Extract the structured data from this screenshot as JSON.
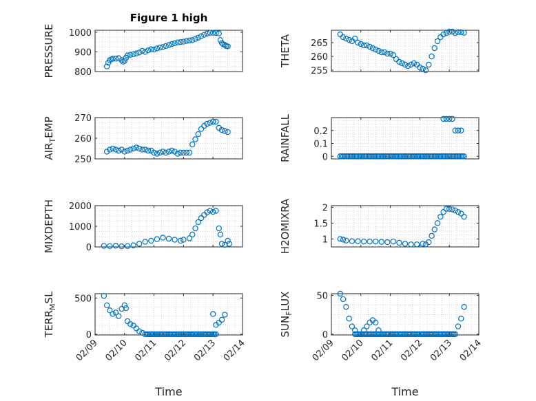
{
  "figure_title": "Figure 1 high",
  "marker_color": "#0072bd",
  "chart_data": [
    {
      "type": "scatter",
      "id": "pressure",
      "title": "Figure 1 high",
      "ylabel": "PRESSURE",
      "ylim": [
        800,
        1010
      ],
      "yticks": [
        800,
        900,
        1000
      ],
      "ytick_labels": [
        "800",
        "900",
        "1000"
      ],
      "xlim": [
        "02/09",
        "02/14"
      ],
      "grid": true,
      "points": [
        [
          "02/09 09:36",
          826
        ],
        [
          "02/09 10:48",
          845
        ],
        [
          "02/09 12:00",
          858
        ],
        [
          "02/09 13:12",
          862
        ],
        [
          "02/09 14:24",
          866
        ],
        [
          "02/09 16:48",
          866
        ],
        [
          "02/09 19:12",
          868
        ],
        [
          "02/09 21:36",
          858
        ],
        [
          "02/09 22:48",
          850
        ],
        [
          "02/10 00:00",
          855
        ],
        [
          "02/10 01:12",
          870
        ],
        [
          "02/10 02:24",
          882
        ],
        [
          "02/10 04:48",
          885
        ],
        [
          "02/10 07:12",
          888
        ],
        [
          "02/10 09:36",
          892
        ],
        [
          "02/10 12:00",
          897
        ],
        [
          "02/10 14:24",
          905
        ],
        [
          "02/10 16:48",
          900
        ],
        [
          "02/10 19:12",
          908
        ],
        [
          "02/10 21:36",
          913
        ],
        [
          "02/11 00:00",
          912
        ],
        [
          "02/11 02:24",
          918
        ],
        [
          "02/11 04:48",
          922
        ],
        [
          "02/11 07:12",
          925
        ],
        [
          "02/11 09:36",
          930
        ],
        [
          "02/11 12:00",
          935
        ],
        [
          "02/11 14:24",
          940
        ],
        [
          "02/11 16:48",
          944
        ],
        [
          "02/11 19:12",
          948
        ],
        [
          "02/11 21:36",
          950
        ],
        [
          "02/12 00:00",
          952
        ],
        [
          "02/12 02:24",
          955
        ],
        [
          "02/12 04:48",
          958
        ],
        [
          "02/12 07:12",
          960
        ],
        [
          "02/12 09:36",
          966
        ],
        [
          "02/12 12:00",
          972
        ],
        [
          "02/12 14:24",
          980
        ],
        [
          "02/12 16:48",
          987
        ],
        [
          "02/12 19:12",
          993
        ],
        [
          "02/12 21:36",
          997
        ],
        [
          "02/13 00:00",
          997
        ],
        [
          "02/13 02:24",
          996
        ],
        [
          "02/13 04:48",
          994
        ],
        [
          "02/13 06:00",
          960
        ],
        [
          "02/13 07:12",
          945
        ],
        [
          "02/13 08:24",
          938
        ],
        [
          "02/13 09:36",
          935
        ],
        [
          "02/13 10:48",
          930
        ],
        [
          "02/13 12:00",
          928
        ]
      ]
    },
    {
      "type": "scatter",
      "id": "theta",
      "ylabel": "THETA",
      "ylim": [
        254.5,
        269.5
      ],
      "yticks": [
        255,
        260,
        265
      ],
      "ytick_labels": [
        "255",
        "260",
        "265"
      ],
      "xlim": [
        "02/09",
        "02/14"
      ],
      "grid": true,
      "points": [
        [
          "02/09 07:12",
          268.0
        ],
        [
          "02/09 09:36",
          267.0
        ],
        [
          "02/09 12:00",
          266.5
        ],
        [
          "02/09 14:24",
          266.0
        ],
        [
          "02/09 16:48",
          265.5
        ],
        [
          "02/09 19:12",
          266.5
        ],
        [
          "02/09 21:36",
          265.0
        ],
        [
          "02/10 00:00",
          264.5
        ],
        [
          "02/10 02:24",
          264.0
        ],
        [
          "02/10 04:48",
          264.0
        ],
        [
          "02/10 07:12",
          263.5
        ],
        [
          "02/10 09:36",
          263.0
        ],
        [
          "02/10 12:00",
          262.5
        ],
        [
          "02/10 14:24",
          262.0
        ],
        [
          "02/10 16:48",
          261.5
        ],
        [
          "02/10 19:12",
          261.5
        ],
        [
          "02/10 21:36",
          261.0
        ],
        [
          "02/11 00:00",
          261.0
        ],
        [
          "02/11 02:24",
          260.5
        ],
        [
          "02/11 04:48",
          259.0
        ],
        [
          "02/11 07:12",
          258.0
        ],
        [
          "02/11 09:36",
          257.5
        ],
        [
          "02/11 12:00",
          257.0
        ],
        [
          "02/11 14:24",
          256.5
        ],
        [
          "02/11 16:48",
          257.0
        ],
        [
          "02/11 19:12",
          257.5
        ],
        [
          "02/11 21:36",
          257.0
        ],
        [
          "02/12 00:00",
          256.0
        ],
        [
          "02/12 02:24",
          255.5
        ],
        [
          "02/12 04:48",
          255.0
        ],
        [
          "02/12 07:12",
          257.0
        ],
        [
          "02/12 09:36",
          260.0
        ],
        [
          "02/12 12:00",
          263.0
        ],
        [
          "02/12 14:24",
          265.5
        ],
        [
          "02/12 16:48",
          267.0
        ],
        [
          "02/12 19:12",
          268.0
        ],
        [
          "02/12 21:36",
          268.5
        ],
        [
          "02/13 00:00",
          269.0
        ],
        [
          "02/13 02:24",
          269.0
        ],
        [
          "02/13 04:48",
          268.5
        ],
        [
          "02/13 07:12",
          268.8
        ],
        [
          "02/13 09:36",
          268.8
        ],
        [
          "02/13 12:00",
          268.6
        ]
      ]
    },
    {
      "type": "scatter",
      "id": "air_temp",
      "ylabel": "AIR_TEMP",
      "ylabel_main": "AIR",
      "ylabel_sub": "T",
      "ylabel_tail": "EMP",
      "ylim": [
        250,
        270
      ],
      "yticks": [
        250,
        260,
        270
      ],
      "ytick_labels": [
        "250",
        "260",
        "270"
      ],
      "xlim": [
        "02/09",
        "02/14"
      ],
      "grid": true,
      "points": [
        [
          "02/09 09:36",
          253.5
        ],
        [
          "02/09 12:00",
          254.5
        ],
        [
          "02/09 14:24",
          255.0
        ],
        [
          "02/09 16:48",
          254.5
        ],
        [
          "02/09 19:12",
          254.0
        ],
        [
          "02/09 21:36",
          254.5
        ],
        [
          "02/10 00:00",
          253.5
        ],
        [
          "02/10 02:24",
          254.0
        ],
        [
          "02/10 04:48",
          254.5
        ],
        [
          "02/10 07:12",
          255.0
        ],
        [
          "02/10 09:36",
          255.5
        ],
        [
          "02/10 12:00",
          255.0
        ],
        [
          "02/10 14:24",
          254.5
        ],
        [
          "02/10 16:48",
          254.5
        ],
        [
          "02/10 19:12",
          254.0
        ],
        [
          "02/10 21:36",
          254.0
        ],
        [
          "02/11 00:00",
          253.0
        ],
        [
          "02/11 02:24",
          252.5
        ],
        [
          "02/11 04:48",
          253.0
        ],
        [
          "02/11 07:12",
          253.5
        ],
        [
          "02/11 09:36",
          253.0
        ],
        [
          "02/11 12:00",
          253.5
        ],
        [
          "02/11 14:24",
          254.0
        ],
        [
          "02/11 16:48",
          253.5
        ],
        [
          "02/11 19:12",
          252.5
        ],
        [
          "02/11 21:36",
          253.0
        ],
        [
          "02/12 00:00",
          253.0
        ],
        [
          "02/12 02:24",
          253.0
        ],
        [
          "02/12 04:48",
          253.0
        ],
        [
          "02/12 07:12",
          257.0
        ],
        [
          "02/12 09:36",
          259.5
        ],
        [
          "02/12 12:00",
          262.0
        ],
        [
          "02/12 14:24",
          264.5
        ],
        [
          "02/12 16:48",
          266.0
        ],
        [
          "02/12 19:12",
          267.0
        ],
        [
          "02/12 21:36",
          267.5
        ],
        [
          "02/13 00:00",
          268.0
        ],
        [
          "02/13 02:24",
          268.0
        ],
        [
          "02/13 04:48",
          265.0
        ],
        [
          "02/13 07:12",
          264.0
        ],
        [
          "02/13 09:36",
          263.5
        ],
        [
          "02/13 12:00",
          263.0
        ]
      ]
    },
    {
      "type": "scatter",
      "id": "rainfall",
      "ylabel": "RAINFALL",
      "ylim": [
        -0.02,
        0.3
      ],
      "yticks": [
        0,
        0.1,
        0.2
      ],
      "ytick_labels": [
        "0",
        "0.1",
        "0.2"
      ],
      "xlim": [
        "02/09",
        "02/14"
      ],
      "grid": true,
      "zero_run": [
        "02/09 07:12",
        "02/13 12:00"
      ],
      "points": [
        [
          "02/12 19:12",
          0.29
        ],
        [
          "02/12 21:36",
          0.29
        ],
        [
          "02/13 00:00",
          0.29
        ],
        [
          "02/13 02:24",
          0.29
        ],
        [
          "02/13 04:48",
          0.2
        ],
        [
          "02/13 07:12",
          0.2
        ],
        [
          "02/13 09:36",
          0.2
        ]
      ]
    },
    {
      "type": "scatter",
      "id": "mixdepth",
      "ylabel": "MIXDEPTH",
      "ylim": [
        0,
        2000
      ],
      "yticks": [
        0,
        1000,
        2000
      ],
      "ytick_labels": [
        "0",
        "1000",
        "2000"
      ],
      "xlim": [
        "02/09",
        "02/14"
      ],
      "grid": true,
      "points": [
        [
          "02/09 07:12",
          50
        ],
        [
          "02/09 12:00",
          40
        ],
        [
          "02/09 16:48",
          60
        ],
        [
          "02/09 21:36",
          30
        ],
        [
          "02/10 02:24",
          40
        ],
        [
          "02/10 07:12",
          80
        ],
        [
          "02/10 12:00",
          150
        ],
        [
          "02/10 16:48",
          250
        ],
        [
          "02/10 21:36",
          300
        ],
        [
          "02/11 02:24",
          380
        ],
        [
          "02/11 07:12",
          450
        ],
        [
          "02/11 12:00",
          400
        ],
        [
          "02/11 16:48",
          350
        ],
        [
          "02/11 21:36",
          300
        ],
        [
          "02/12 00:00",
          350
        ],
        [
          "02/12 04:48",
          420
        ],
        [
          "02/12 07:12",
          600
        ],
        [
          "02/12 09:36",
          900
        ],
        [
          "02/12 12:00",
          1200
        ],
        [
          "02/12 14:24",
          1400
        ],
        [
          "02/12 16:48",
          1550
        ],
        [
          "02/12 19:12",
          1680
        ],
        [
          "02/12 21:36",
          1750
        ],
        [
          "02/13 00:00",
          1700
        ],
        [
          "02/13 02:24",
          1750
        ],
        [
          "02/13 04:48",
          900
        ],
        [
          "02/13 06:00",
          600
        ],
        [
          "02/13 07:12",
          150
        ],
        [
          "02/13 09:36",
          100
        ],
        [
          "02/13 12:00",
          300
        ],
        [
          "02/13 13:12",
          150
        ]
      ]
    },
    {
      "type": "scatter",
      "id": "h2omixra",
      "ylabel": "H2OMIXRA",
      "ylim": [
        0.75,
        2.05
      ],
      "yticks": [
        1,
        1.5,
        2
      ],
      "ytick_labels": [
        "1",
        "1.5",
        "2"
      ],
      "xlim": [
        "02/09",
        "02/14"
      ],
      "grid": true,
      "points": [
        [
          "02/09 07:12",
          1.0
        ],
        [
          "02/09 09:36",
          0.98
        ],
        [
          "02/09 12:00",
          0.95
        ],
        [
          "02/09 16:48",
          0.93
        ],
        [
          "02/09 21:36",
          0.93
        ],
        [
          "02/10 02:24",
          0.92
        ],
        [
          "02/10 07:12",
          0.92
        ],
        [
          "02/10 12:00",
          0.92
        ],
        [
          "02/10 16:48",
          0.91
        ],
        [
          "02/10 21:36",
          0.9
        ],
        [
          "02/11 02:24",
          0.92
        ],
        [
          "02/11 07:12",
          0.88
        ],
        [
          "02/11 12:00",
          0.85
        ],
        [
          "02/11 16:48",
          0.83
        ],
        [
          "02/11 21:36",
          0.83
        ],
        [
          "02/12 02:24",
          0.85
        ],
        [
          "02/12 04:48",
          0.83
        ],
        [
          "02/12 07:12",
          0.9
        ],
        [
          "02/12 09:36",
          1.1
        ],
        [
          "02/12 12:00",
          1.3
        ],
        [
          "02/12 14:24",
          1.5
        ],
        [
          "02/12 16:48",
          1.7
        ],
        [
          "02/12 19:12",
          1.85
        ],
        [
          "02/12 21:36",
          1.95
        ],
        [
          "02/13 00:00",
          1.95
        ],
        [
          "02/13 02:24",
          1.93
        ],
        [
          "02/13 04:48",
          1.9
        ],
        [
          "02/13 07:12",
          1.85
        ],
        [
          "02/13 09:36",
          1.8
        ],
        [
          "02/13 12:00",
          1.7
        ]
      ]
    },
    {
      "type": "scatter",
      "id": "terr_msl",
      "ylabel": "TERR_MSL",
      "ylabel_main": "TERR",
      "ylabel_sub": "M",
      "ylabel_tail": "SL",
      "ylim": [
        -10,
        560
      ],
      "yticks": [
        0,
        500
      ],
      "ytick_labels": [
        "0",
        "500"
      ],
      "xlim": [
        "02/09",
        "02/14"
      ],
      "grid": true,
      "zero_run": [
        "02/10 16:48",
        "02/13 02:24"
      ],
      "points": [
        [
          "02/09 07:12",
          530
        ],
        [
          "02/09 09:36",
          400
        ],
        [
          "02/09 12:00",
          330
        ],
        [
          "02/09 14:24",
          280
        ],
        [
          "02/09 16:48",
          300
        ],
        [
          "02/09 19:12",
          250
        ],
        [
          "02/09 21:36",
          350
        ],
        [
          "02/10 00:00",
          400
        ],
        [
          "02/10 01:12",
          360
        ],
        [
          "02/10 02:24",
          180
        ],
        [
          "02/10 04:48",
          140
        ],
        [
          "02/10 07:12",
          120
        ],
        [
          "02/10 09:36",
          80
        ],
        [
          "02/10 12:00",
          40
        ],
        [
          "02/10 14:24",
          20
        ],
        [
          "02/13 00:00",
          280
        ],
        [
          "02/13 02:24",
          130
        ],
        [
          "02/13 04:48",
          160
        ],
        [
          "02/13 07:12",
          200
        ],
        [
          "02/13 09:36",
          270
        ]
      ]
    },
    {
      "type": "scatter",
      "id": "sun_flux",
      "ylabel": "SUN_FLUX",
      "ylabel_main": "SUN",
      "ylabel_sub": "F",
      "ylabel_tail": "LUX",
      "ylim": [
        -1,
        52
      ],
      "yticks": [
        0,
        50
      ],
      "ytick_labels": [
        "0",
        "50"
      ],
      "xlim": [
        "02/09",
        "02/14"
      ],
      "grid": true,
      "zero_run": [
        "02/09 19:12",
        "02/13 04:48"
      ],
      "points": [
        [
          "02/09 07:12",
          52
        ],
        [
          "02/09 09:36",
          45
        ],
        [
          "02/09 12:00",
          35
        ],
        [
          "02/09 14:24",
          20
        ],
        [
          "02/09 16:48",
          10
        ],
        [
          "02/09 19:12",
          5
        ],
        [
          "02/10 02:24",
          5
        ],
        [
          "02/10 04:48",
          10
        ],
        [
          "02/10 07:12",
          15
        ],
        [
          "02/10 09:36",
          18
        ],
        [
          "02/10 12:00",
          15
        ],
        [
          "02/10 14:24",
          5
        ],
        [
          "02/13 07:12",
          10
        ],
        [
          "02/13 09:36",
          20
        ],
        [
          "02/13 12:00",
          35
        ]
      ]
    }
  ],
  "x_tick_labels": [
    "02/09",
    "02/10",
    "02/11",
    "02/12",
    "02/13",
    "02/14"
  ],
  "x_axis_label": "Time"
}
